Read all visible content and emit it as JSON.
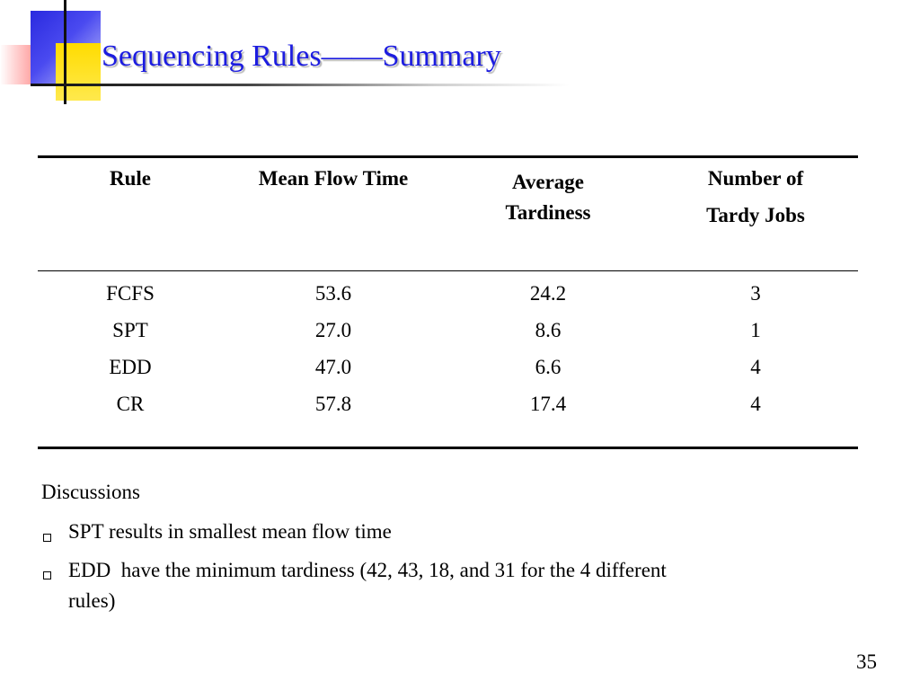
{
  "slide": {
    "title": "Sequencing Rules——Summary",
    "page_number": "35"
  },
  "table": {
    "headers": {
      "rule": "Rule",
      "mean_flow_time": "Mean Flow Time",
      "average_tardiness_line1": "Average",
      "average_tardiness_line2": "Tardiness",
      "tardy_jobs_line1": "Number of",
      "tardy_jobs_line2": "Tardy Jobs"
    },
    "rows": [
      {
        "rule": "FCFS",
        "mean_flow_time": "53.6",
        "average_tardiness": "24.2",
        "tardy_jobs": "3"
      },
      {
        "rule": "SPT",
        "mean_flow_time": "27.0",
        "average_tardiness": "8.6",
        "tardy_jobs": "1"
      },
      {
        "rule": "EDD",
        "mean_flow_time": "47.0",
        "average_tardiness": "6.6",
        "tardy_jobs": "4"
      },
      {
        "rule": "CR",
        "mean_flow_time": "57.8",
        "average_tardiness": "17.4",
        "tardy_jobs": "4"
      }
    ]
  },
  "discussion": {
    "heading": "Discussions",
    "bullets": [
      {
        "line1": "SPT results in smallest mean flow time"
      },
      {
        "line1": "EDD  have the minimum tardiness (42, 43, 18, and 31 for the 4 different",
        "line2": "rules)"
      }
    ]
  },
  "colors": {
    "title": "#1c1ce0",
    "deco_blue": "#2a2adf",
    "deco_yellow": "#ffdc00",
    "deco_red": "#ff4a4a"
  }
}
